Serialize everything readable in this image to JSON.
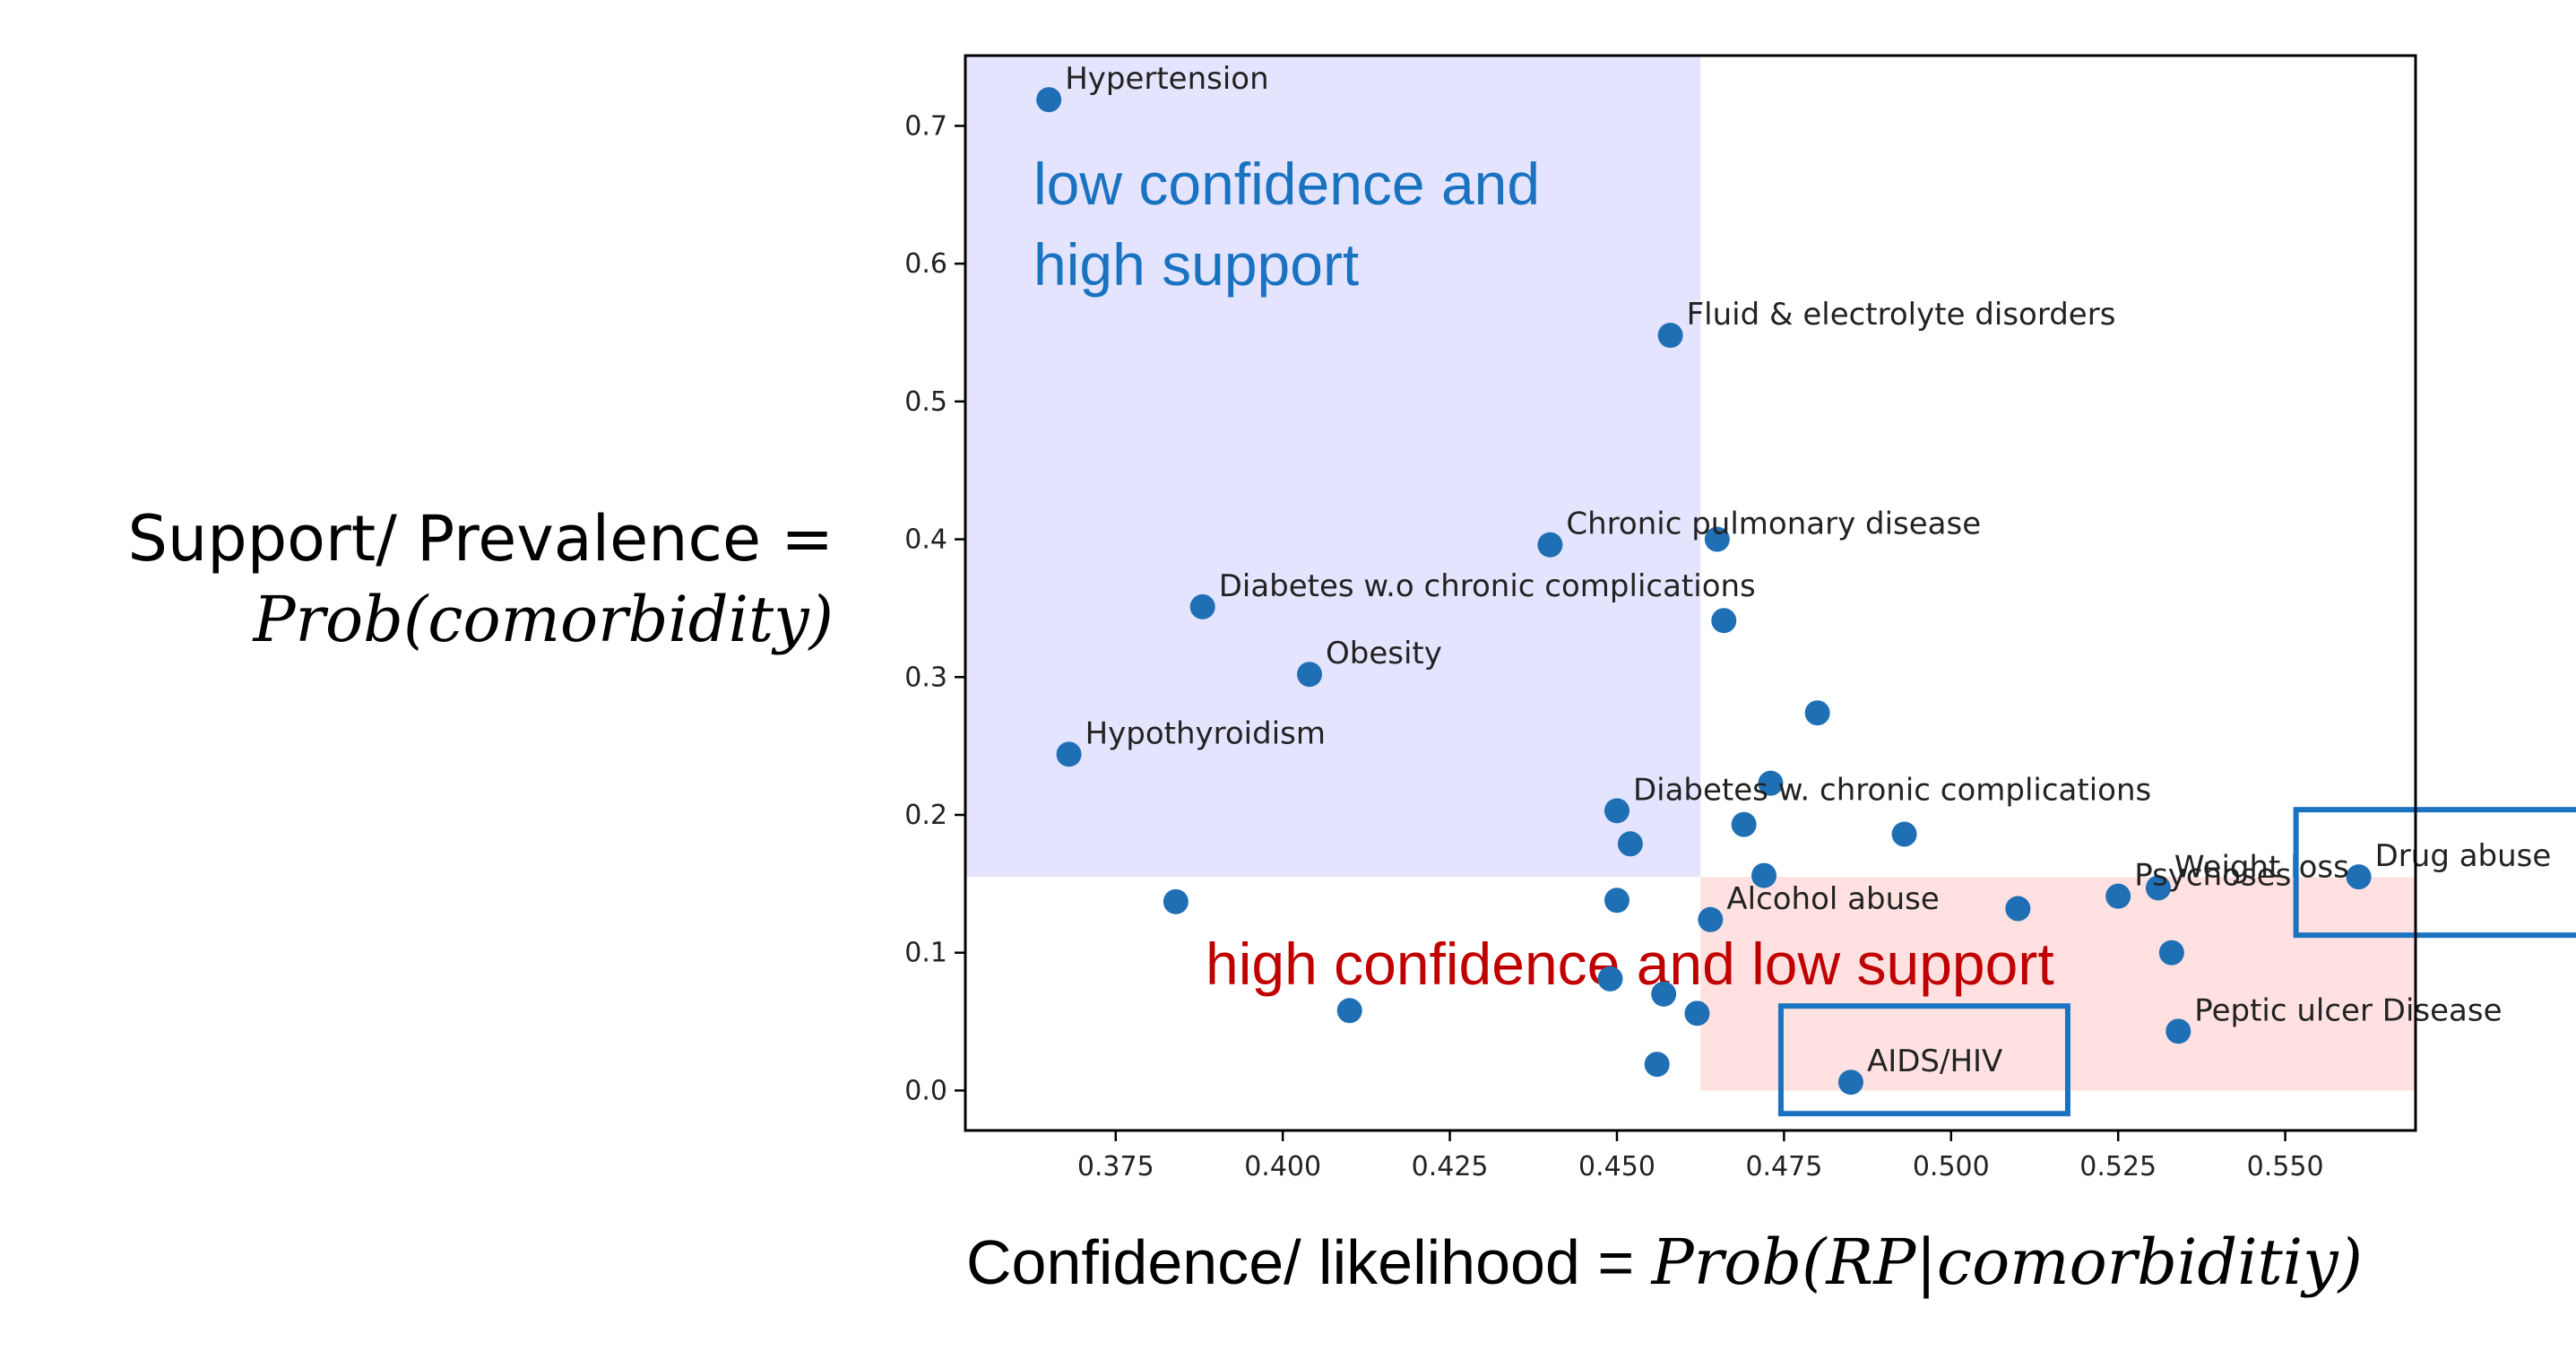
{
  "chart_data": {
    "type": "scatter",
    "xlabel": {
      "text": "Confidence/ likelihood = ",
      "math": "Prob(RP|comorbiditiy)"
    },
    "ylabel": {
      "line1": "Support/ Prevalence =",
      "line2_math": "Prob(comorbidity)"
    },
    "xlim": [
      0.3525,
      0.5695
    ],
    "ylim": [
      -0.029,
      0.751
    ],
    "xticks": [
      "0.375",
      "0.400",
      "0.425",
      "0.450",
      "0.475",
      "0.500",
      "0.525",
      "0.550"
    ],
    "yticks": [
      "0.0",
      "0.1",
      "0.2",
      "0.3",
      "0.4",
      "0.5",
      "0.6",
      "0.7"
    ],
    "grid": false,
    "marker_color": "#1f6fb5",
    "regions": [
      {
        "name": "low confidence and high support",
        "x": [
          0.3525,
          0.4625
        ],
        "y": [
          0.155,
          0.751
        ],
        "color": "#e4e4ff",
        "label_lines": [
          "low confidence and",
          "high support"
        ],
        "label_color": "#1a73c1"
      },
      {
        "name": "high confidence and low support",
        "x": [
          0.4625,
          0.5695
        ],
        "y": [
          0.0,
          0.155
        ],
        "color": "#ffe1e1",
        "label_lines": [
          "high confidence and low support"
        ],
        "label_color": "#c00000"
      }
    ],
    "highlight_boxes": [
      {
        "target": "Drug abuse",
        "color": "#1a73c1"
      },
      {
        "target": "AIDS/HIV",
        "color": "#1a73c1"
      }
    ],
    "points": [
      {
        "x": 0.365,
        "y": 0.719,
        "label": "Hypertension"
      },
      {
        "x": 0.458,
        "y": 0.548,
        "label": "Fluid & electrolyte disorders"
      },
      {
        "x": 0.44,
        "y": 0.396,
        "label": "Chronic pulmonary disease"
      },
      {
        "x": 0.465,
        "y": 0.4,
        "label": ""
      },
      {
        "x": 0.388,
        "y": 0.351,
        "label": "Diabetes w.o chronic complications"
      },
      {
        "x": 0.466,
        "y": 0.341,
        "label": ""
      },
      {
        "x": 0.404,
        "y": 0.302,
        "label": "Obesity"
      },
      {
        "x": 0.48,
        "y": 0.274,
        "label": ""
      },
      {
        "x": 0.368,
        "y": 0.244,
        "label": "Hypothyroidism"
      },
      {
        "x": 0.473,
        "y": 0.223,
        "label": ""
      },
      {
        "x": 0.45,
        "y": 0.203,
        "label": "Diabetes w. chronic complications"
      },
      {
        "x": 0.469,
        "y": 0.193,
        "label": ""
      },
      {
        "x": 0.493,
        "y": 0.186,
        "label": ""
      },
      {
        "x": 0.452,
        "y": 0.179,
        "label": ""
      },
      {
        "x": 0.472,
        "y": 0.156,
        "label": ""
      },
      {
        "x": 0.561,
        "y": 0.155,
        "label": "Drug abuse"
      },
      {
        "x": 0.531,
        "y": 0.147,
        "label": "Weight loss"
      },
      {
        "x": 0.525,
        "y": 0.141,
        "label": "Psychoses"
      },
      {
        "x": 0.384,
        "y": 0.137,
        "label": ""
      },
      {
        "x": 0.45,
        "y": 0.138,
        "label": ""
      },
      {
        "x": 0.51,
        "y": 0.132,
        "label": ""
      },
      {
        "x": 0.464,
        "y": 0.124,
        "label": "Alcohol abuse"
      },
      {
        "x": 0.533,
        "y": 0.1,
        "label": ""
      },
      {
        "x": 0.449,
        "y": 0.081,
        "label": ""
      },
      {
        "x": 0.457,
        "y": 0.07,
        "label": ""
      },
      {
        "x": 0.41,
        "y": 0.058,
        "label": ""
      },
      {
        "x": 0.462,
        "y": 0.056,
        "label": ""
      },
      {
        "x": 0.534,
        "y": 0.043,
        "label": "Peptic ulcer Disease"
      },
      {
        "x": 0.456,
        "y": 0.019,
        "label": ""
      },
      {
        "x": 0.485,
        "y": 0.006,
        "label": "AIDS/HIV"
      }
    ]
  }
}
